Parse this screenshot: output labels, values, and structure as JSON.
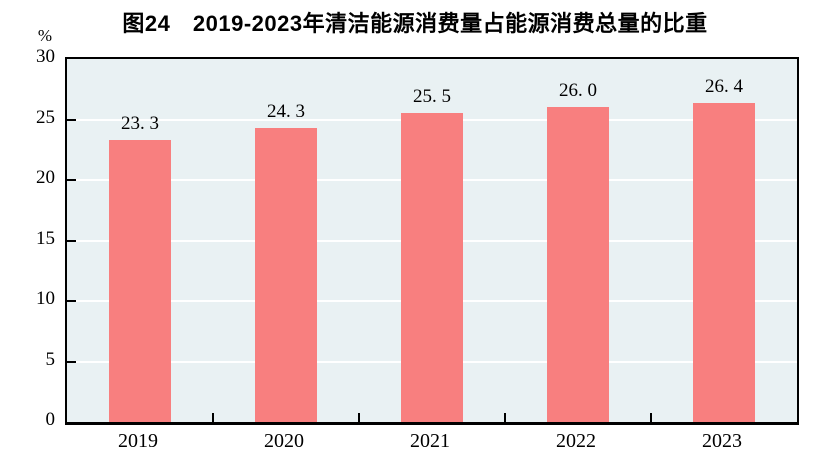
{
  "chart_data": {
    "type": "bar",
    "title": "图24　2019-2023年清洁能源消费量占能源消费总量的比重",
    "unit": "%",
    "categories": [
      "2019",
      "2020",
      "2021",
      "2022",
      "2023"
    ],
    "values": [
      23.3,
      24.3,
      25.5,
      26.0,
      26.4
    ],
    "value_labels": [
      "23. 3",
      "24. 3",
      "25. 5",
      "26. 0",
      "26. 4"
    ],
    "xlabel": "",
    "ylabel": "%",
    "ylim": [
      0,
      30
    ],
    "yticks": [
      0,
      5,
      10,
      15,
      20,
      25,
      30
    ],
    "grid": true,
    "legend_position": "none",
    "colors": {
      "bar_fill": "#f87f7f",
      "plot_background": "#e9f1f3",
      "gridline": "#ffffff",
      "axis": "#000000",
      "text": "#000000",
      "page_background": "#ffffff"
    }
  }
}
